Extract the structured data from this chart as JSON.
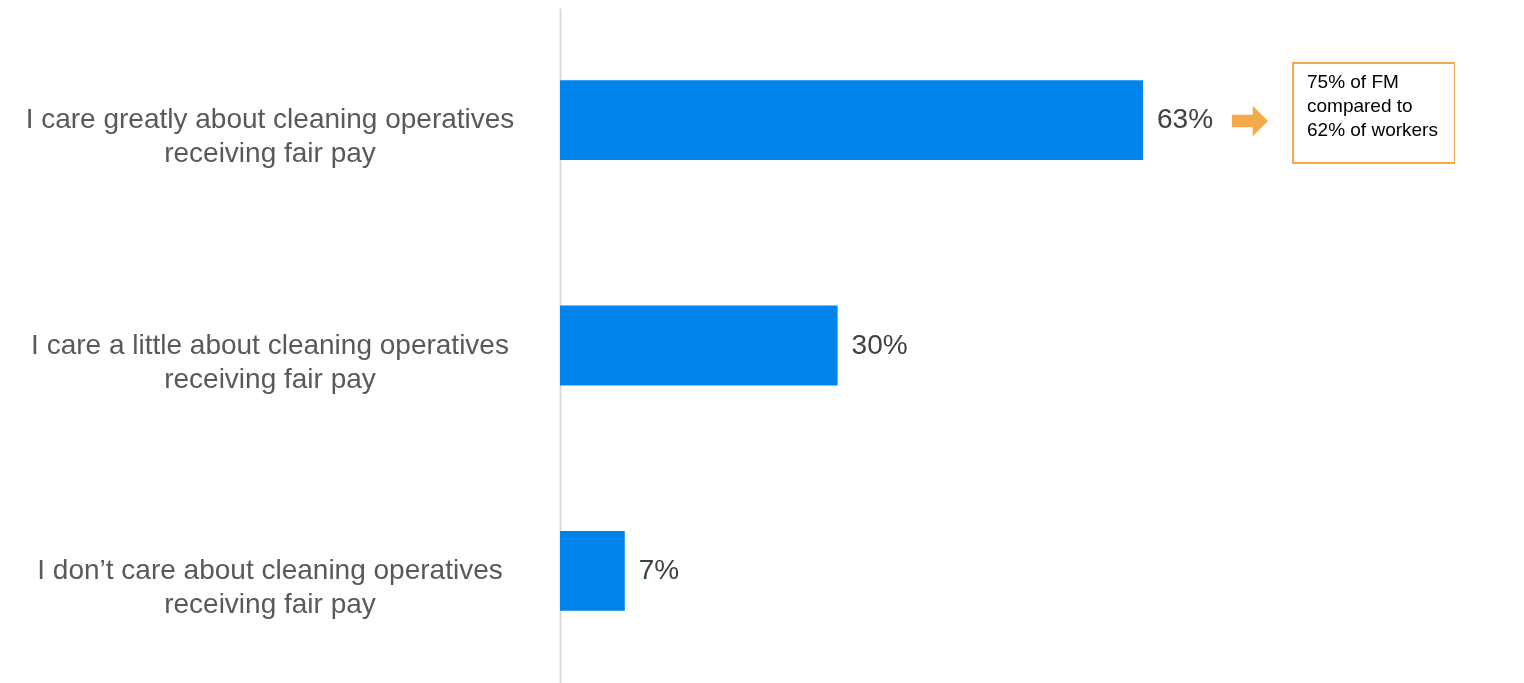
{
  "chart_data": {
    "type": "bar",
    "orientation": "horizontal",
    "categories": [
      "I care greatly about cleaning operatives receiving fair pay",
      "I care a little about cleaning operatives receiving fair pay",
      "I don’t care about cleaning operatives receiving fair pay"
    ],
    "values": [
      63,
      30,
      7
    ],
    "value_labels": [
      "63%",
      "30%",
      "7%"
    ],
    "color": "#0084ec",
    "grid": false,
    "annotations": [
      "75% of FM compared to 62% of workers"
    ]
  }
}
